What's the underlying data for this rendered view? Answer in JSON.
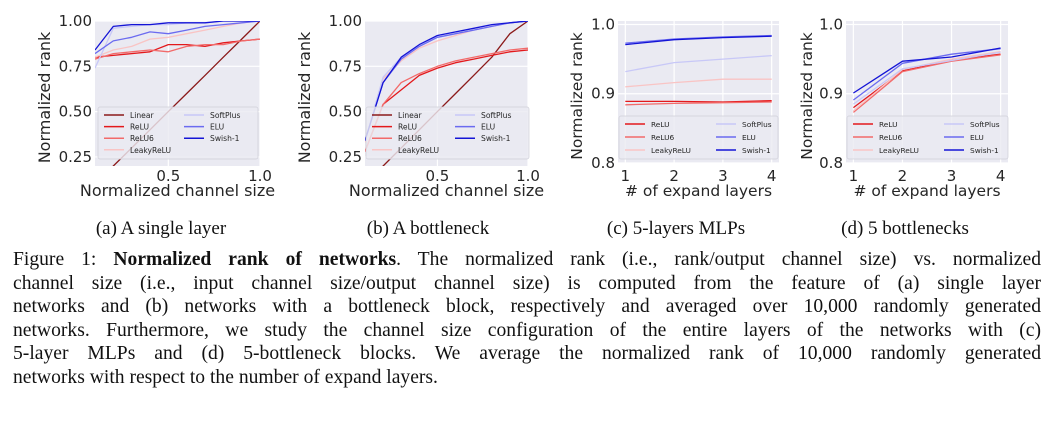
{
  "figure": {
    "subcaptions": [
      "(a) A single layer",
      "(b) A bottleneck",
      "(c) 5-layers MLPs",
      "(d) 5 bottlenecks"
    ],
    "caption": {
      "label": "Figure 1:",
      "title": "Normalized rank of networks",
      "lines": [
        ". The normalized rank (i.e., rank/output channel size) vs. normalized",
        "channel size (i.e., input channel size/output channel size) is computed from the feature of (a) single layer",
        "networks and (b) networks with a bottleneck block, respectively and averaged over 10,000 randomly generated",
        "networks. Furthermore, we study the channel size configuration of the entire layers of the networks with (c)",
        "5-layer MLPs and (d) 5-bottleneck blocks. We average the normalized rank of 10,000 randomly generated",
        "networks with respect to the number of expand layers."
      ]
    }
  },
  "series_colors": {
    "Linear": "#8b1a1a",
    "ReLU": "#e3191c",
    "ReLU6": "#f26a6a",
    "LeakyReLU": "#f9c4c4",
    "SoftPlus": "#c8c8f7",
    "ELU": "#6b6bf0",
    "Swish-1": "#1414d6"
  },
  "plot_style": {
    "background": "#eaeaf2",
    "grid": "#ffffff"
  },
  "chart_data": [
    {
      "id": "a",
      "type": "line",
      "title": "",
      "xlabel": "Normalized channel size",
      "ylabel": "Normalized rank",
      "xlim": [
        0.1,
        1.0
      ],
      "ylim": [
        0.2,
        1.0
      ],
      "xticks": [
        0.5,
        1.0
      ],
      "xtick_labels": [
        "0.5",
        "1.0"
      ],
      "yticks": [
        0.25,
        0.5,
        0.75,
        1.0
      ],
      "ytick_labels": [
        "0.25",
        "0.50",
        "0.75",
        "1.00"
      ],
      "grid": true,
      "legend": {
        "placement": "bottom",
        "columns": 2,
        "entries": [
          "Linear",
          "ReLU",
          "ReLU6",
          "LeakyReLU",
          "SoftPlus",
          "ELU",
          "Swish-1"
        ]
      },
      "x": [
        0.1,
        0.2,
        0.3,
        0.4,
        0.5,
        0.6,
        0.7,
        0.8,
        0.9,
        1.0
      ],
      "series": [
        {
          "name": "Linear",
          "values": [
            0.1,
            0.2,
            0.3,
            0.4,
            0.5,
            0.6,
            0.7,
            0.8,
            0.9,
            1.0
          ]
        },
        {
          "name": "ReLU",
          "values": [
            0.8,
            0.81,
            0.82,
            0.83,
            0.87,
            0.87,
            0.86,
            0.88,
            0.89,
            0.9
          ]
        },
        {
          "name": "ReLU6",
          "values": [
            0.79,
            0.82,
            0.83,
            0.84,
            0.83,
            0.86,
            0.87,
            0.87,
            0.89,
            0.9
          ]
        },
        {
          "name": "LeakyReLU",
          "values": [
            0.8,
            0.84,
            0.86,
            0.9,
            0.91,
            0.93,
            0.95,
            0.97,
            0.99,
            1.0
          ]
        },
        {
          "name": "SoftPlus",
          "values": [
            0.74,
            0.96,
            0.97,
            0.98,
            0.98,
            0.99,
            0.99,
            1.0,
            1.0,
            1.0
          ]
        },
        {
          "name": "ELU",
          "values": [
            0.82,
            0.89,
            0.91,
            0.94,
            0.93,
            0.95,
            0.97,
            0.98,
            0.99,
            1.0
          ]
        },
        {
          "name": "Swish-1",
          "values": [
            0.84,
            0.97,
            0.98,
            0.98,
            0.99,
            0.99,
            0.99,
            1.0,
            1.0,
            1.0
          ]
        }
      ]
    },
    {
      "id": "b",
      "type": "line",
      "title": "",
      "xlabel": "Normalized channel size",
      "ylabel": "Normalized rank",
      "xlim": [
        0.1,
        1.0
      ],
      "ylim": [
        0.2,
        1.0
      ],
      "xticks": [
        0.5,
        1.0
      ],
      "xtick_labels": [
        "0.5",
        "1.0"
      ],
      "yticks": [
        0.25,
        0.5,
        0.75,
        1.0
      ],
      "ytick_labels": [
        "0.25",
        "0.50",
        "0.75",
        "1.00"
      ],
      "grid": true,
      "legend": {
        "placement": "bottom",
        "columns": 2,
        "entries": [
          "Linear",
          "ReLU",
          "ReLU6",
          "LeakyReLU",
          "SoftPlus",
          "ELU",
          "Swish-1"
        ]
      },
      "x": [
        0.1,
        0.2,
        0.3,
        0.4,
        0.5,
        0.6,
        0.7,
        0.8,
        0.9,
        1.0
      ],
      "series": [
        {
          "name": "Linear",
          "values": [
            0.1,
            0.2,
            0.3,
            0.4,
            0.5,
            0.6,
            0.7,
            0.8,
            0.93,
            1.0
          ]
        },
        {
          "name": "ReLU",
          "values": [
            0.28,
            0.54,
            0.62,
            0.7,
            0.74,
            0.77,
            0.79,
            0.81,
            0.83,
            0.84
          ]
        },
        {
          "name": "ReLU6",
          "values": [
            0.28,
            0.54,
            0.66,
            0.71,
            0.75,
            0.78,
            0.8,
            0.82,
            0.84,
            0.85
          ]
        },
        {
          "name": "LeakyReLU",
          "values": [
            0.33,
            0.68,
            0.78,
            0.85,
            0.89,
            0.92,
            0.95,
            0.97,
            0.99,
            1.0
          ]
        },
        {
          "name": "SoftPlus",
          "values": [
            0.34,
            0.69,
            0.8,
            0.86,
            0.91,
            0.93,
            0.95,
            0.97,
            0.99,
            1.0
          ]
        },
        {
          "name": "ELU",
          "values": [
            0.34,
            0.66,
            0.79,
            0.86,
            0.91,
            0.93,
            0.95,
            0.97,
            0.99,
            1.0
          ]
        },
        {
          "name": "Swish-1",
          "values": [
            0.34,
            0.66,
            0.8,
            0.87,
            0.92,
            0.94,
            0.96,
            0.98,
            0.99,
            1.0
          ]
        }
      ]
    },
    {
      "id": "c",
      "type": "line",
      "title": "",
      "xlabel": "# of expand layers",
      "ylabel": "Normalized rank",
      "xlim": [
        0.85,
        4.15
      ],
      "ylim": [
        0.8,
        1.005
      ],
      "xticks": [
        1,
        2,
        3,
        4
      ],
      "xtick_labels": [
        "1",
        "2",
        "3",
        "4"
      ],
      "yticks": [
        0.8,
        0.9,
        1.0
      ],
      "ytick_labels": [
        "0.8",
        "0.9",
        "1.0"
      ],
      "grid": true,
      "legend": {
        "placement": "bottom",
        "columns": 2,
        "entries": [
          "ReLU",
          "ReLU6",
          "LeakyReLU",
          "SoftPlus",
          "ELU",
          "Swish-1"
        ]
      },
      "x": [
        1,
        2,
        3,
        4
      ],
      "series": [
        {
          "name": "ReLU",
          "values": [
            0.889,
            0.889,
            0.888,
            0.89
          ]
        },
        {
          "name": "ReLU6",
          "values": [
            0.884,
            0.886,
            0.887,
            0.888
          ]
        },
        {
          "name": "LeakyReLU",
          "values": [
            0.91,
            0.916,
            0.921,
            0.921
          ]
        },
        {
          "name": "SoftPlus",
          "values": [
            0.932,
            0.945,
            0.95,
            0.955
          ]
        },
        {
          "name": "ELU",
          "values": [
            0.973,
            0.979,
            0.982,
            0.984
          ]
        },
        {
          "name": "Swish-1",
          "values": [
            0.971,
            0.978,
            0.981,
            0.983
          ]
        }
      ]
    },
    {
      "id": "d",
      "type": "line",
      "title": "",
      "xlabel": "# of expand layers",
      "ylabel": "Normalized rank",
      "xlim": [
        0.85,
        4.15
      ],
      "ylim": [
        0.8,
        1.005
      ],
      "xticks": [
        1,
        2,
        3,
        4
      ],
      "xtick_labels": [
        "1",
        "2",
        "3",
        "4"
      ],
      "yticks": [
        0.8,
        0.9,
        1.0
      ],
      "ytick_labels": [
        "0.8",
        "0.9",
        "1.0"
      ],
      "grid": true,
      "legend": {
        "placement": "bottom",
        "columns": 2,
        "entries": [
          "ReLU",
          "ReLU6",
          "LeakyReLU",
          "SoftPlus",
          "ELU",
          "Swish-1"
        ]
      },
      "x": [
        1,
        2,
        3,
        4
      ],
      "series": [
        {
          "name": "ReLU",
          "values": [
            0.88,
            0.933,
            0.948,
            0.957
          ]
        },
        {
          "name": "ReLU6",
          "values": [
            0.873,
            0.932,
            0.947,
            0.956
          ]
        },
        {
          "name": "LeakyReLU",
          "values": [
            0.875,
            0.935,
            0.95,
            0.961
          ]
        },
        {
          "name": "SoftPlus",
          "values": [
            0.885,
            0.936,
            0.948,
            0.96
          ]
        },
        {
          "name": "ELU",
          "values": [
            0.891,
            0.944,
            0.957,
            0.965
          ]
        },
        {
          "name": "Swish-1",
          "values": [
            0.901,
            0.947,
            0.953,
            0.966
          ]
        }
      ]
    }
  ]
}
